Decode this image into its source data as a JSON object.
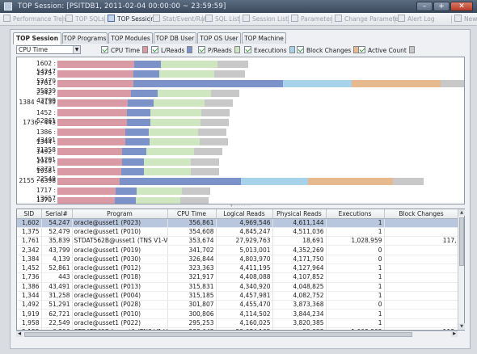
{
  "window": {
    "title": "TOP Session: [PSITDB1, 2011-02-04  00:00:00 ~ 23:59:59]"
  },
  "toolbar": {
    "items": [
      {
        "label": "Performance Trend",
        "active": false
      },
      {
        "label": "TOP SQLs",
        "active": false
      },
      {
        "label": "TOP Session",
        "active": true
      },
      {
        "label": "Stat/Event/Ratio",
        "active": false
      },
      {
        "label": "SQL List",
        "active": false
      },
      {
        "label": "Session List",
        "active": false
      },
      {
        "label": "Parameter",
        "active": false
      },
      {
        "label": "Change Parameter",
        "active": false
      },
      {
        "label": "Alert Log",
        "active": false
      },
      {
        "label": "New",
        "active": false
      }
    ]
  },
  "tabs": [
    "TOP Session",
    "TOP Programs",
    "TOP Modules",
    "TOP DB User",
    "TOP OS User",
    "TOP Machine"
  ],
  "metric_select": {
    "value": "CPU Time"
  },
  "legend": [
    {
      "label": "CPU Time",
      "color": "#d99aa6"
    },
    {
      "label": "L/Reads",
      "color": "#7b93c9"
    },
    {
      "label": "P/Reads",
      "color": "#cfe7c0"
    },
    {
      "label": "Executions",
      "color": "#a7d2ec"
    },
    {
      "label": "Block Changes",
      "color": "#e8b98e"
    },
    {
      "label": "Active Count",
      "color": "#c8c8c8"
    }
  ],
  "chart_data": {
    "type": "bar",
    "stacked": true,
    "orientation": "horizontal",
    "categories": [
      "1602 : 54247",
      "1375 : 52479",
      "1761 : 35839",
      "2342 : 43799",
      "1384 : 4139",
      "1452 : 52861",
      "1736 : 443",
      "1386 : 43491",
      "1344 : 31258",
      "1492 : 51291",
      "1919 : 62721",
      "1958 : 22549",
      "2155 : 6396",
      "1717 : 13657",
      "1370 : 40736"
    ],
    "series": [
      {
        "name": "CPU Time",
        "values": [
          356861,
          354608,
          353674,
          341702,
          326844,
          323363,
          321917,
          315831,
          315185,
          301807,
          300806,
          295253,
          288643,
          270000,
          265000
        ]
      },
      {
        "name": "L/Reads",
        "values": [
          4969546,
          4845247,
          27929763,
          5013001,
          4803970,
          4411195,
          4408088,
          4340920,
          4457981,
          4455470,
          4114502,
          4160025,
          22674105,
          4000000,
          3900000
        ]
      },
      {
        "name": "P/Reads",
        "values": [
          4611144,
          4511036,
          18691,
          4352269,
          4171750,
          4127964,
          4107852,
          4048825,
          4082752,
          3873368,
          3844234,
          3820385,
          22823,
          3700000,
          3650000
        ]
      },
      {
        "name": "Executions",
        "values": [
          1,
          1,
          1028959,
          0,
          0,
          1,
          1,
          1,
          1,
          0,
          1,
          1,
          1008302,
          1,
          1
        ]
      },
      {
        "name": "Block Changes",
        "values": [
          0,
          0,
          117,
          0,
          0,
          0,
          0,
          0,
          0,
          0,
          0,
          0,
          112,
          0,
          0
        ]
      },
      {
        "name": "Active Count",
        "values": [
          30,
          30,
          40,
          28,
          28,
          28,
          28,
          28,
          28,
          28,
          28,
          28,
          30,
          28,
          28
        ]
      }
    ],
    "grid": false,
    "legend_position": "top"
  },
  "grid": {
    "columns": [
      "SID",
      "Serial#",
      "Program",
      "CPU Time",
      "Logical Reads",
      "Physical Reads",
      "Executions",
      "Block Changes"
    ],
    "rows": [
      [
        "1,602",
        "54,247",
        "oracle@usset1 (P023)",
        "356,861",
        "4,969,546",
        "4,611,144",
        "1",
        ""
      ],
      [
        "1,375",
        "52,479",
        "oracle@usset1 (P010)",
        "354,608",
        "4,845,247",
        "4,511,036",
        "1",
        ""
      ],
      [
        "1,761",
        "35,839",
        "STDAT562B@usset1 (TNS V1-V3)",
        "353,674",
        "27,929,763",
        "18,691",
        "1,028,959",
        "117,"
      ],
      [
        "2,342",
        "43,799",
        "oracle@usset1 (P019)",
        "341,702",
        "5,013,001",
        "4,352,269",
        "0",
        ""
      ],
      [
        "1,384",
        "4,139",
        "oracle@usset1 (P030)",
        "326,844",
        "4,803,970",
        "4,171,750",
        "0",
        ""
      ],
      [
        "1,452",
        "52,861",
        "oracle@usset1 (P012)",
        "323,363",
        "4,411,195",
        "4,127,964",
        "1",
        ""
      ],
      [
        "1,736",
        "443",
        "oracle@usset1 (P018)",
        "321,917",
        "4,408,088",
        "4,107,852",
        "1",
        ""
      ],
      [
        "1,386",
        "43,491",
        "oracle@usset1 (P013)",
        "315,831",
        "4,340,920",
        "4,048,825",
        "1",
        ""
      ],
      [
        "1,344",
        "31,258",
        "oracle@usset1 (P004)",
        "315,185",
        "4,457,981",
        "4,082,752",
        "1",
        ""
      ],
      [
        "1,492",
        "51,291",
        "oracle@usset1 (P028)",
        "301,807",
        "4,455,470",
        "3,873,368",
        "0",
        ""
      ],
      [
        "1,919",
        "62,721",
        "oracle@usset1 (P010)",
        "300,806",
        "4,114,502",
        "3,844,234",
        "1",
        ""
      ],
      [
        "1,958",
        "22,549",
        "oracle@usset1 (P022)",
        "295,253",
        "4,160,025",
        "3,820,385",
        "1",
        ""
      ],
      [
        "2,155",
        "6,396",
        "STDAT562B@usset1 (TNS V1-V3)",
        "288,643",
        "22,674,105",
        "22,823",
        "1,008,302",
        "112,"
      ]
    ]
  }
}
